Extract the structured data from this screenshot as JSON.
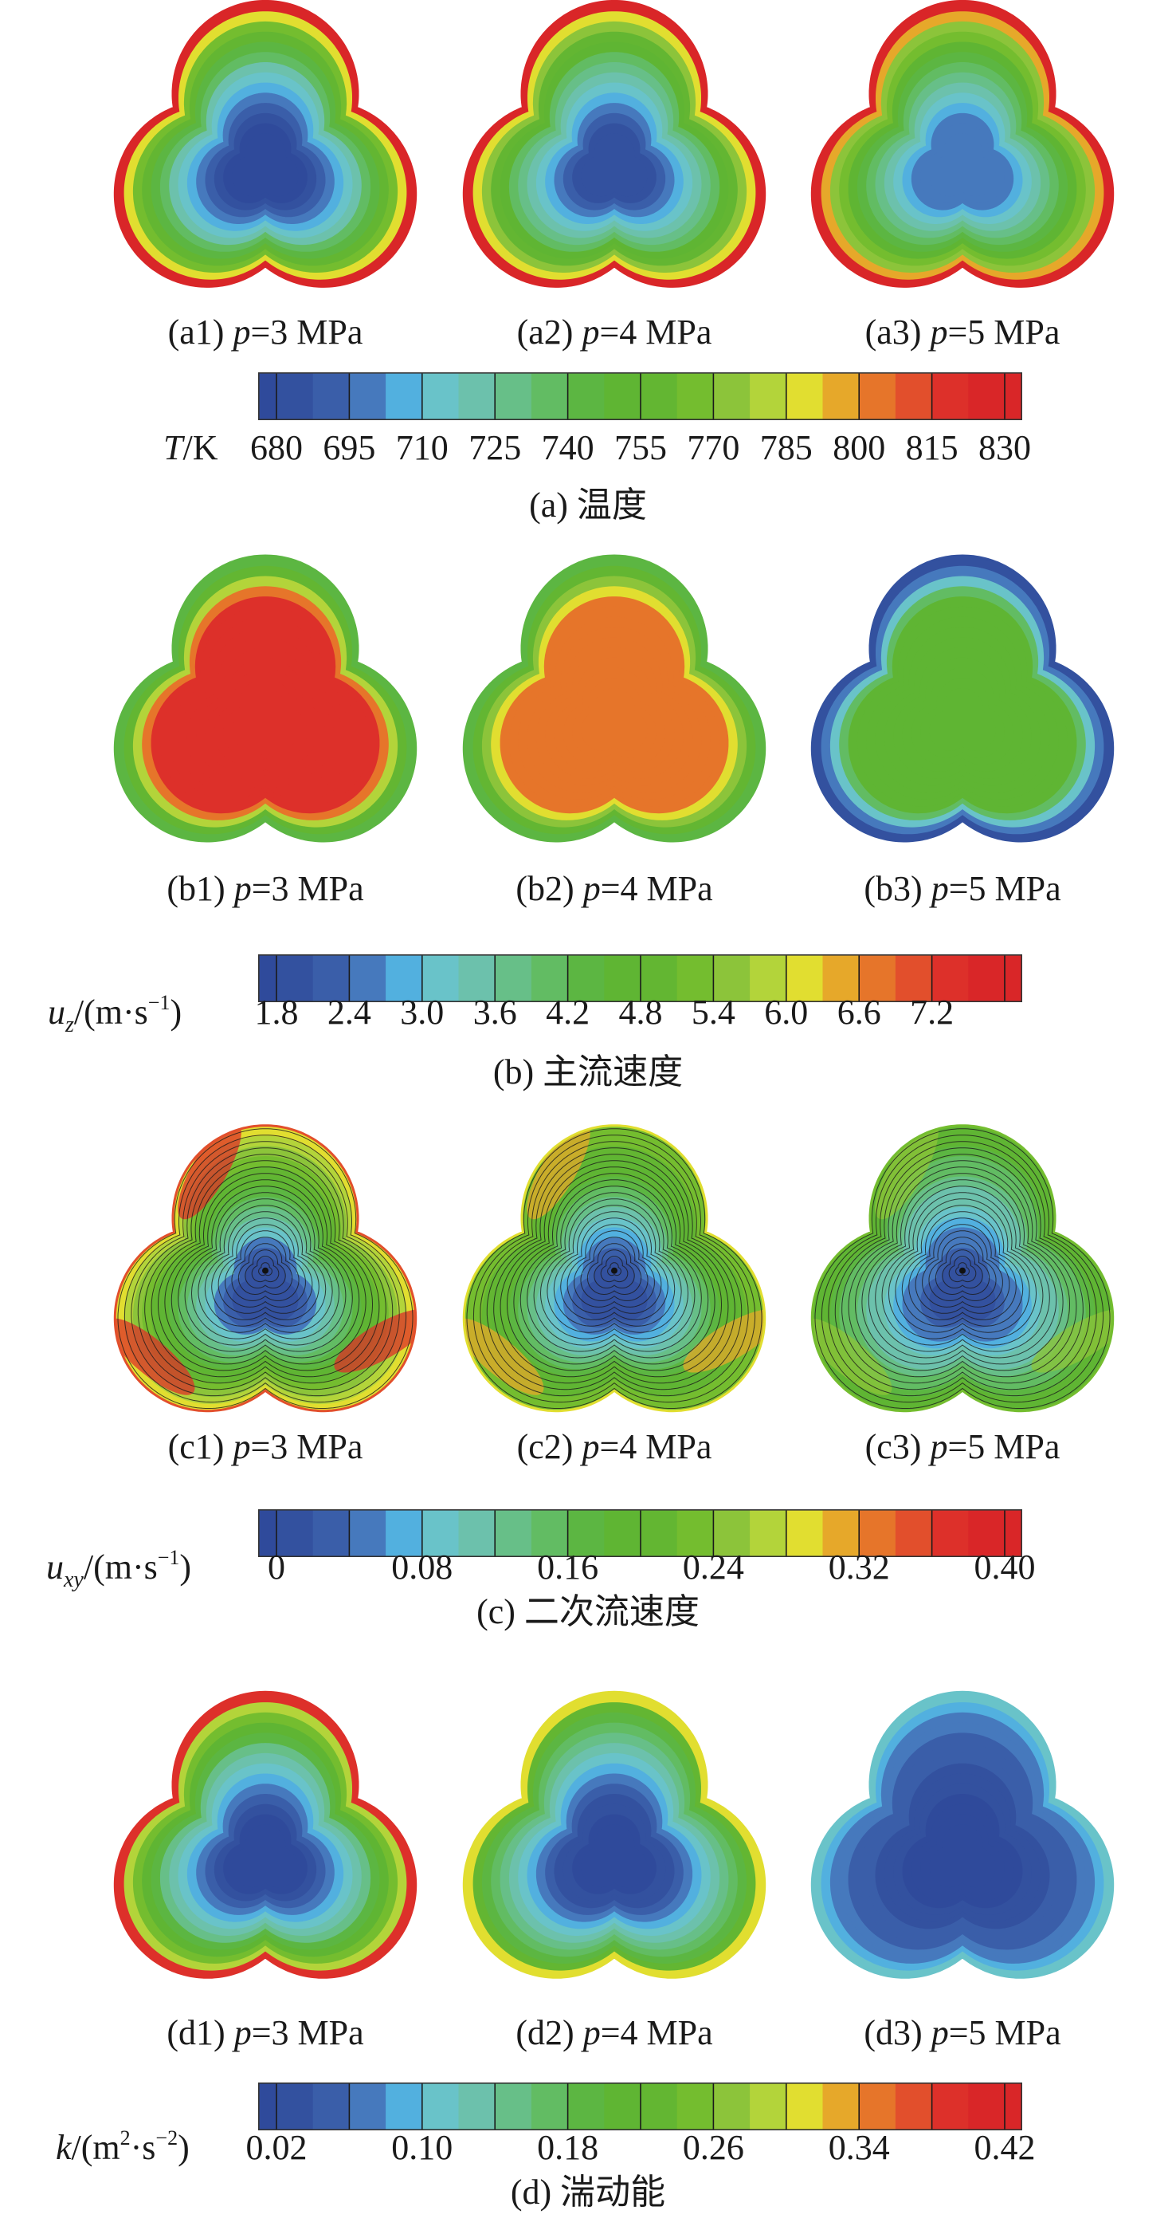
{
  "figure": {
    "colormap": [
      "#2f4a9b",
      "#33519f",
      "#3a5ea9",
      "#4679bd",
      "#52b0df",
      "#69c3c9",
      "#6cc1ac",
      "#67bf88",
      "#62bc63",
      "#5cb642",
      "#5fb533",
      "#63b632",
      "#74bd2f",
      "#8cc43a",
      "#b3d43a",
      "#e1de30",
      "#e6a82a",
      "#e6752a",
      "#e24f2c",
      "#dd302a",
      "#d92628"
    ]
  },
  "chart_data": [
    {
      "type": "heatmap",
      "id": "a",
      "title": "(a) 温度",
      "caption_label": "(a)",
      "caption_text": "温度",
      "quantity": "T",
      "unit": "K",
      "colorbar_label": {
        "symbol": "T",
        "unit": "/K"
      },
      "ticks": [
        "680",
        "695",
        "710",
        "725",
        "740",
        "755",
        "770",
        "785",
        "800",
        "815",
        "830"
      ],
      "tick_every": 1,
      "range": [
        680,
        830
      ],
      "subplots": [
        {
          "label": "(a1)",
          "var": "p",
          "value": "=3 MPa",
          "core": 680,
          "edge": 830,
          "pattern": "cold-core"
        },
        {
          "label": "(a2)",
          "var": "p",
          "value": "=4 MPa",
          "core": 690,
          "edge": 830,
          "pattern": "cold-core"
        },
        {
          "label": "(a3)",
          "var": "p",
          "value": "=5 MPa",
          "core": 700,
          "edge": 830,
          "pattern": "cold-core"
        }
      ]
    },
    {
      "type": "heatmap",
      "id": "b",
      "title": "(b) 主流速度",
      "caption_label": "(b)",
      "caption_text": "主流速度",
      "quantity": "u_z",
      "unit": "m·s⁻¹",
      "colorbar_label": {
        "symbol": "u",
        "sub": "z",
        "unit_pre": "/(m·s",
        "sup": "−1",
        "unit_post": ")"
      },
      "ticks": [
        "1.8",
        "2.4",
        "3.0",
        "3.6",
        "4.2",
        "4.8",
        "5.4",
        "6.0",
        "6.6",
        "7.2"
      ],
      "tick_every": 1,
      "range": [
        1.8,
        7.2
      ],
      "subplots": [
        {
          "label": "(b1)",
          "var": "p",
          "value": "=3 MPa",
          "core": 7.0,
          "edge": 4.2,
          "pattern": "hot-core"
        },
        {
          "label": "(b2)",
          "var": "p",
          "value": "=4 MPa",
          "core": 6.3,
          "edge": 4.2,
          "pattern": "hot-core"
        },
        {
          "label": "(b3)",
          "var": "p",
          "value": "=5 MPa",
          "core": 4.5,
          "edge": 2.0,
          "pattern": "hot-core"
        }
      ]
    },
    {
      "type": "heatmap",
      "id": "c",
      "title": "(c) 二次流速度",
      "caption_label": "(c)",
      "caption_text": "二次流速度",
      "quantity": "u_xy",
      "unit": "m·s⁻¹",
      "colorbar_label": {
        "symbol": "u",
        "sub": "xy",
        "unit_pre": "/(m·s",
        "sup": "−1",
        "unit_post": ")"
      },
      "ticks": [
        "0",
        "0.08",
        "0.16",
        "0.24",
        "0.32",
        "0.40"
      ],
      "tick_every": 2,
      "range": [
        0,
        0.4
      ],
      "subplots": [
        {
          "label": "(c1)",
          "var": "p",
          "value": "=3 MPa",
          "core": 0.0,
          "edge": 0.36,
          "pattern": "vortex"
        },
        {
          "label": "(c2)",
          "var": "p",
          "value": "=4 MPa",
          "core": 0.0,
          "edge": 0.3,
          "pattern": "vortex"
        },
        {
          "label": "(c3)",
          "var": "p",
          "value": "=5 MPa",
          "core": 0.0,
          "edge": 0.24,
          "pattern": "vortex"
        }
      ]
    },
    {
      "type": "heatmap",
      "id": "d",
      "title": "(d) 湍动能",
      "caption_label": "(d)",
      "caption_text": "湍动能",
      "quantity": "k",
      "unit": "m²·s⁻²",
      "colorbar_label": {
        "symbol": "k",
        "unit_pre": "/(m",
        "sup1": "2",
        "mid": "·s",
        "sup": "−2",
        "unit_post": ")"
      },
      "ticks": [
        "0.02",
        "0.10",
        "0.18",
        "0.26",
        "0.34",
        "0.42"
      ],
      "tick_every": 2,
      "range": [
        0.02,
        0.42
      ],
      "subplots": [
        {
          "label": "(d1)",
          "var": "p",
          "value": "=3 MPa",
          "core": 0.02,
          "edge": 0.4,
          "pattern": "cold-core"
        },
        {
          "label": "(d2)",
          "var": "p",
          "value": "=4 MPa",
          "core": 0.02,
          "edge": 0.32,
          "pattern": "cold-core"
        },
        {
          "label": "(d3)",
          "var": "p",
          "value": "=5 MPa",
          "core": 0.02,
          "edge": 0.12,
          "pattern": "cold-core"
        }
      ]
    }
  ]
}
